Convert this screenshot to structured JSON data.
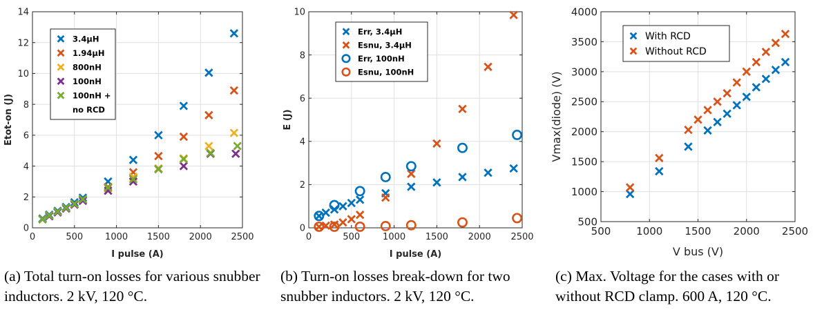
{
  "colors": {
    "blue": "#0072BD",
    "orange": "#D95319",
    "yellow": "#EDB120",
    "purple": "#7E2F8E",
    "green": "#77AC30",
    "axis": "#262626",
    "grid": "#dfdfdf"
  },
  "chart_data": [
    {
      "type": "scatter",
      "title": "",
      "xlabel": "I pulse (A)",
      "ylabel": "Etot-on (J)",
      "xlim": [
        0,
        2500
      ],
      "ylim": [
        0,
        14
      ],
      "xticks": [
        0,
        500,
        1000,
        1500,
        2000,
        2500
      ],
      "yticks": [
        0,
        2,
        4,
        6,
        8,
        10,
        12,
        14
      ],
      "grid": true,
      "legend_position": "top-left",
      "series": [
        {
          "name": "3.4μH",
          "color": "blue",
          "marker": "x",
          "x": [
            120,
            200,
            300,
            400,
            500,
            600,
            900,
            1200,
            1500,
            1800,
            2100,
            2400
          ],
          "y": [
            0.6,
            0.85,
            1.1,
            1.35,
            1.65,
            1.95,
            3.0,
            4.4,
            6.0,
            7.9,
            10.05,
            12.6
          ]
        },
        {
          "name": "1.94μH",
          "color": "orange",
          "marker": "x",
          "x": [
            120,
            200,
            300,
            400,
            500,
            600,
            900,
            1200,
            1500,
            1800,
            2100,
            2400
          ],
          "y": [
            0.55,
            0.8,
            1.05,
            1.3,
            1.55,
            1.85,
            2.65,
            3.6,
            4.65,
            5.9,
            7.3,
            8.9
          ]
        },
        {
          "name": "800nH",
          "color": "yellow",
          "marker": "x",
          "x": [
            120,
            200,
            300,
            400,
            500,
            600,
            900,
            1200,
            1500,
            1800,
            2100,
            2400
          ],
          "y": [
            0.55,
            0.8,
            1.0,
            1.25,
            1.5,
            1.8,
            2.55,
            3.3,
            3.85,
            4.5,
            5.3,
            6.15
          ]
        },
        {
          "name": "100nH",
          "color": "purple",
          "marker": "x",
          "x": [
            120,
            200,
            300,
            400,
            500,
            600,
            900,
            1200,
            1500,
            1800,
            2120,
            2420
          ],
          "y": [
            0.55,
            0.75,
            1.0,
            1.25,
            1.5,
            1.75,
            2.4,
            3.0,
            3.8,
            4.0,
            4.8,
            4.8
          ]
        },
        {
          "name": "100nH +\nno RCD",
          "color": "green",
          "marker": "x",
          "x": [
            120,
            200,
            300,
            400,
            500,
            600,
            900,
            1200,
            1500,
            1800,
            2120,
            2440
          ],
          "y": [
            0.55,
            0.8,
            1.05,
            1.3,
            1.55,
            1.85,
            2.6,
            3.15,
            3.8,
            4.45,
            4.85,
            5.3
          ]
        }
      ]
    },
    {
      "type": "scatter",
      "title": "",
      "xlabel": "I pulse (A)",
      "ylabel": "E (J)",
      "xlim": [
        0,
        2500
      ],
      "ylim": [
        0,
        10
      ],
      "xticks": [
        0,
        500,
        1000,
        1500,
        2000,
        2500
      ],
      "yticks": [
        0,
        2,
        4,
        6,
        8,
        10
      ],
      "grid": true,
      "legend_position": "top-left",
      "series": [
        {
          "name": "Err, 3.4μH",
          "color": "blue",
          "marker": "x",
          "x": [
            120,
            200,
            300,
            400,
            500,
            600,
            900,
            1200,
            1500,
            1800,
            2100,
            2400
          ],
          "y": [
            0.55,
            0.7,
            0.85,
            1.0,
            1.15,
            1.3,
            1.6,
            1.9,
            2.1,
            2.35,
            2.55,
            2.75
          ]
        },
        {
          "name": "Esnu, 3.4μH",
          "color": "orange",
          "marker": "x",
          "x": [
            120,
            200,
            300,
            400,
            500,
            600,
            900,
            1200,
            1500,
            1800,
            2100,
            2400
          ],
          "y": [
            0.05,
            0.1,
            0.15,
            0.25,
            0.4,
            0.6,
            1.4,
            2.5,
            3.9,
            5.5,
            7.45,
            9.85
          ]
        },
        {
          "name": "Err, 100nH",
          "color": "blue",
          "marker": "o",
          "x": [
            120,
            300,
            600,
            900,
            1200,
            1800,
            2440
          ],
          "y": [
            0.55,
            1.05,
            1.7,
            2.35,
            2.85,
            3.7,
            4.3
          ]
        },
        {
          "name": "Esnu, 100nH",
          "color": "orange",
          "marker": "o",
          "x": [
            120,
            300,
            600,
            900,
            1200,
            1800,
            2440
          ],
          "y": [
            0.05,
            0.05,
            0.05,
            0.08,
            0.12,
            0.25,
            0.45
          ]
        }
      ]
    },
    {
      "type": "scatter",
      "title": "",
      "xlabel": "V bus (V)",
      "ylabel": "Vmax(diode) (V)",
      "xlim": [
        500,
        2500
      ],
      "ylim": [
        500,
        4000
      ],
      "xticks": [
        500,
        1000,
        1500,
        2000,
        2500
      ],
      "yticks": [
        500,
        1000,
        1500,
        2000,
        2500,
        3000,
        3500,
        4000
      ],
      "grid": true,
      "legend_position": "top-left",
      "series": [
        {
          "name": "With RCD",
          "color": "blue",
          "marker": "x",
          "x": [
            800,
            1100,
            1400,
            1600,
            1700,
            1800,
            1900,
            2000,
            2100,
            2200,
            2300,
            2400
          ],
          "y": [
            960,
            1340,
            1750,
            2020,
            2160,
            2300,
            2440,
            2580,
            2740,
            2880,
            3030,
            3160
          ]
        },
        {
          "name": "Without RCD",
          "color": "orange",
          "marker": "x",
          "x": [
            800,
            1100,
            1400,
            1500,
            1600,
            1700,
            1800,
            1900,
            2000,
            2100,
            2200,
            2300,
            2400
          ],
          "y": [
            1070,
            1560,
            2030,
            2200,
            2360,
            2500,
            2640,
            2820,
            3000,
            3160,
            3330,
            3480,
            3630
          ]
        }
      ]
    }
  ],
  "captions": [
    {
      "label": "(a) Total turn-on losses for various snubber inductors. 2 kV, 120 °C."
    },
    {
      "label": "(b) Turn-on losses break-down for two snubber inductors. 2 kV, 120 °C."
    },
    {
      "label": "(c) Max. Voltage for the cases with or without RCD clamp. 600 A, 120 °C."
    }
  ]
}
